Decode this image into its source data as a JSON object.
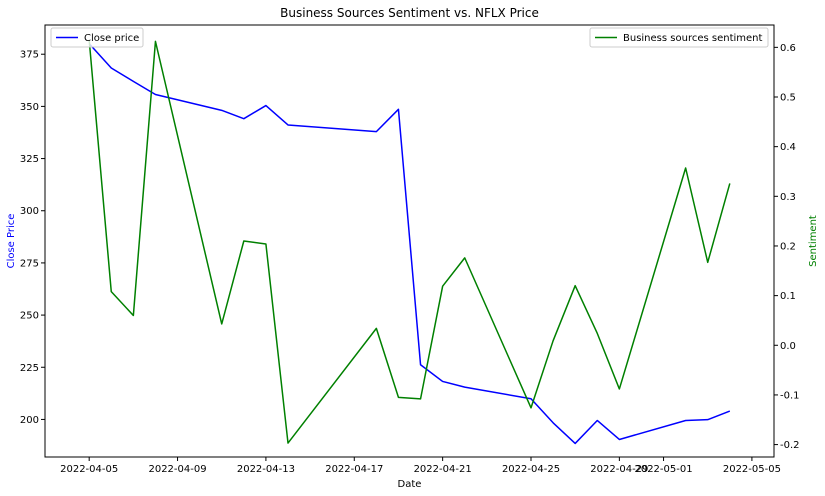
{
  "chart_data": {
    "type": "line",
    "title": "Business Sources Sentiment vs. NFLX Price",
    "xlabel": "Date",
    "ylabel_left": "Close Price",
    "ylabel_right": "Sentiment",
    "xlim": [
      "2022-04-03",
      "2022-05-06"
    ],
    "x_ticks": [
      "2022-04-05",
      "2022-04-09",
      "2022-04-13",
      "2022-04-17",
      "2022-04-21",
      "2022-04-25",
      "2022-04-29",
      "2022-05-01",
      "2022-05-05"
    ],
    "ylim_left": [
      182,
      389
    ],
    "y_ticks_left": [
      200,
      225,
      250,
      275,
      300,
      325,
      350,
      375
    ],
    "ylim_right": [
      -0.225,
      0.645
    ],
    "y_ticks_right": [
      -0.2,
      -0.1,
      0.0,
      0.1,
      0.2,
      0.3,
      0.4,
      0.5,
      0.6
    ],
    "grid": false,
    "series": [
      {
        "name": "Close price",
        "axis": "left",
        "color": "#0000ff",
        "legend_position": "upper-left",
        "points": [
          {
            "x": "2022-04-05",
            "y": 380.1
          },
          {
            "x": "2022-04-06",
            "y": 368.4
          },
          {
            "x": "2022-04-07",
            "y": 362.0
          },
          {
            "x": "2022-04-08",
            "y": 355.7
          },
          {
            "x": "2022-04-11",
            "y": 348.1
          },
          {
            "x": "2022-04-12",
            "y": 344.1
          },
          {
            "x": "2022-04-13",
            "y": 350.4
          },
          {
            "x": "2022-04-14",
            "y": 341.1
          },
          {
            "x": "2022-04-18",
            "y": 337.9
          },
          {
            "x": "2022-04-19",
            "y": 348.6
          },
          {
            "x": "2022-04-20",
            "y": 226.2
          },
          {
            "x": "2022-04-21",
            "y": 218.2
          },
          {
            "x": "2022-04-22",
            "y": 215.5
          },
          {
            "x": "2022-04-25",
            "y": 209.9
          },
          {
            "x": "2022-04-26",
            "y": 198.4
          },
          {
            "x": "2022-04-27",
            "y": 188.5
          },
          {
            "x": "2022-04-28",
            "y": 199.5
          },
          {
            "x": "2022-04-29",
            "y": 190.4
          },
          {
            "x": "2022-05-02",
            "y": 199.5
          },
          {
            "x": "2022-05-03",
            "y": 199.9
          },
          {
            "x": "2022-05-04",
            "y": 204.0
          }
        ]
      },
      {
        "name": "Business sources sentiment",
        "axis": "right",
        "color": "#008000",
        "legend_position": "upper-right",
        "points": [
          {
            "x": "2022-04-05",
            "y": 0.615
          },
          {
            "x": "2022-04-06",
            "y": 0.108
          },
          {
            "x": "2022-04-07",
            "y": 0.06
          },
          {
            "x": "2022-04-08",
            "y": 0.612
          },
          {
            "x": "2022-04-11",
            "y": 0.043
          },
          {
            "x": "2022-04-12",
            "y": 0.21
          },
          {
            "x": "2022-04-13",
            "y": 0.204
          },
          {
            "x": "2022-04-14",
            "y": -0.197
          },
          {
            "x": "2022-04-18",
            "y": 0.034
          },
          {
            "x": "2022-04-19",
            "y": -0.105
          },
          {
            "x": "2022-04-20",
            "y": -0.108
          },
          {
            "x": "2022-04-21",
            "y": 0.119
          },
          {
            "x": "2022-04-22",
            "y": 0.176
          },
          {
            "x": "2022-04-25",
            "y": -0.126
          },
          {
            "x": "2022-04-26",
            "y": 0.009
          },
          {
            "x": "2022-04-27",
            "y": 0.12
          },
          {
            "x": "2022-04-28",
            "y": 0.024
          },
          {
            "x": "2022-04-29",
            "y": -0.088
          },
          {
            "x": "2022-05-02",
            "y": 0.357
          },
          {
            "x": "2022-05-03",
            "y": 0.167
          },
          {
            "x": "2022-05-04",
            "y": 0.326
          }
        ]
      }
    ]
  }
}
